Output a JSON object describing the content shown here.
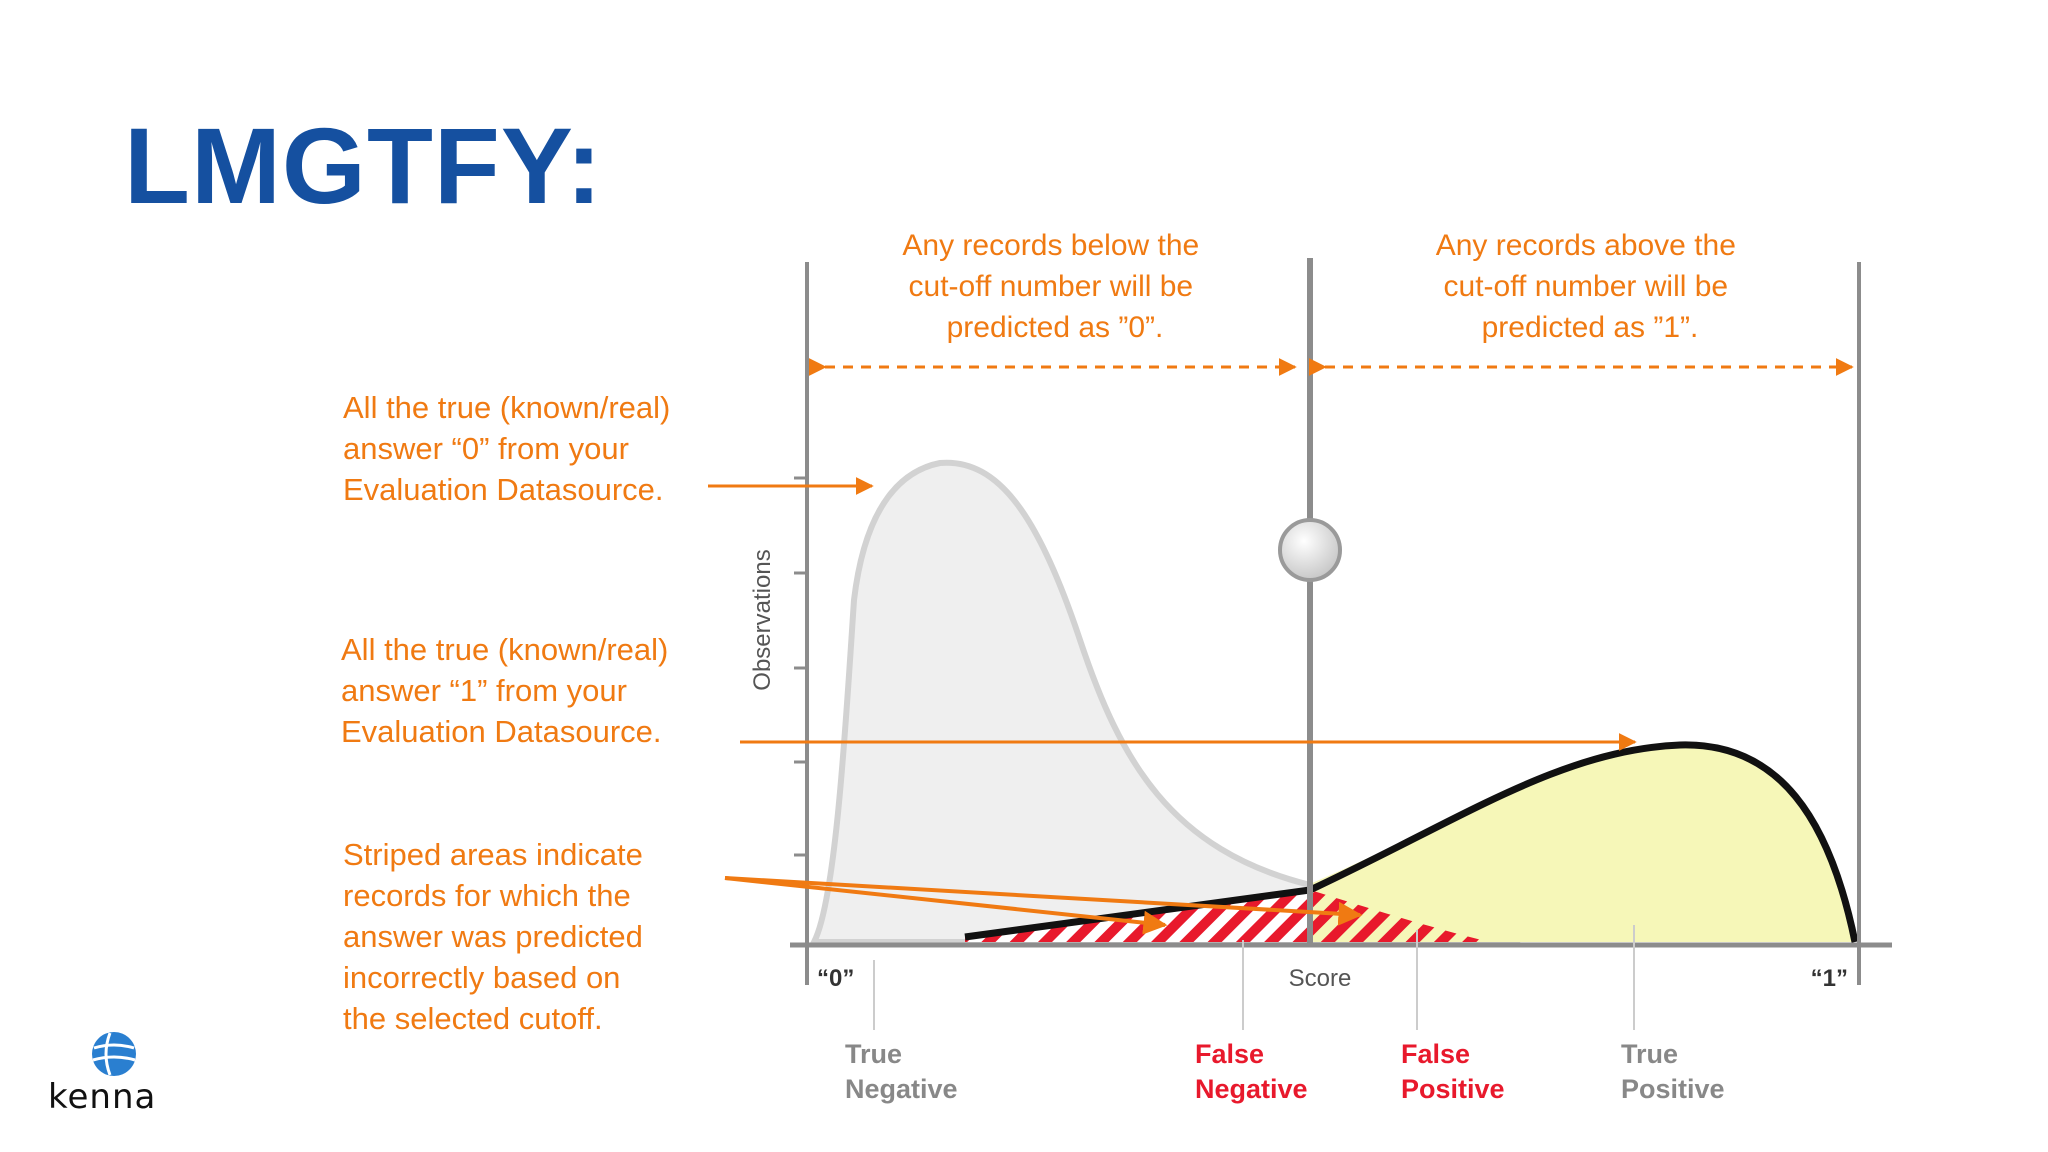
{
  "slide": {
    "title": "LMGTFY:"
  },
  "diagram": {
    "top_left_note": [
      "Any records below the",
      "cut-off number will be",
      "predicted as ”0”."
    ],
    "top_right_note": [
      "Any records above the",
      "cut-off number will be",
      "predicted as ”1”."
    ],
    "left_note_0": [
      "All the true (known/real)",
      "answer “0” from your",
      "Evaluation Datasource."
    ],
    "left_note_1": [
      "All the true (known/real)",
      "answer “1” from your",
      "Evaluation Datasource."
    ],
    "left_note_striped": [
      "Striped areas indicate",
      "records for which the",
      "answer was predicted",
      "incorrectly based on",
      "the selected cutoff."
    ],
    "y_axis_label": "Observations",
    "x_axis_label": "Score",
    "x_left_label": "“0”",
    "x_right_label": "“1”",
    "regions": {
      "true_negative": [
        "True",
        "Negative"
      ],
      "false_negative": [
        "False",
        "Negative"
      ],
      "false_positive": [
        "False",
        "Positive"
      ],
      "true_positive": [
        "True",
        "Positive"
      ]
    },
    "colors": {
      "annotation": "#f07a12",
      "false_label": "#e8192c",
      "muted_label": "#888888",
      "neg_fill": "#efefef",
      "neg_stroke": "#d0d0d0",
      "pos_fill": "#f6f7b8",
      "pos_stroke": "#111111",
      "axis": "#8c8c8c"
    }
  },
  "logo": {
    "text": "kenna",
    "icon": "globe-icon"
  }
}
